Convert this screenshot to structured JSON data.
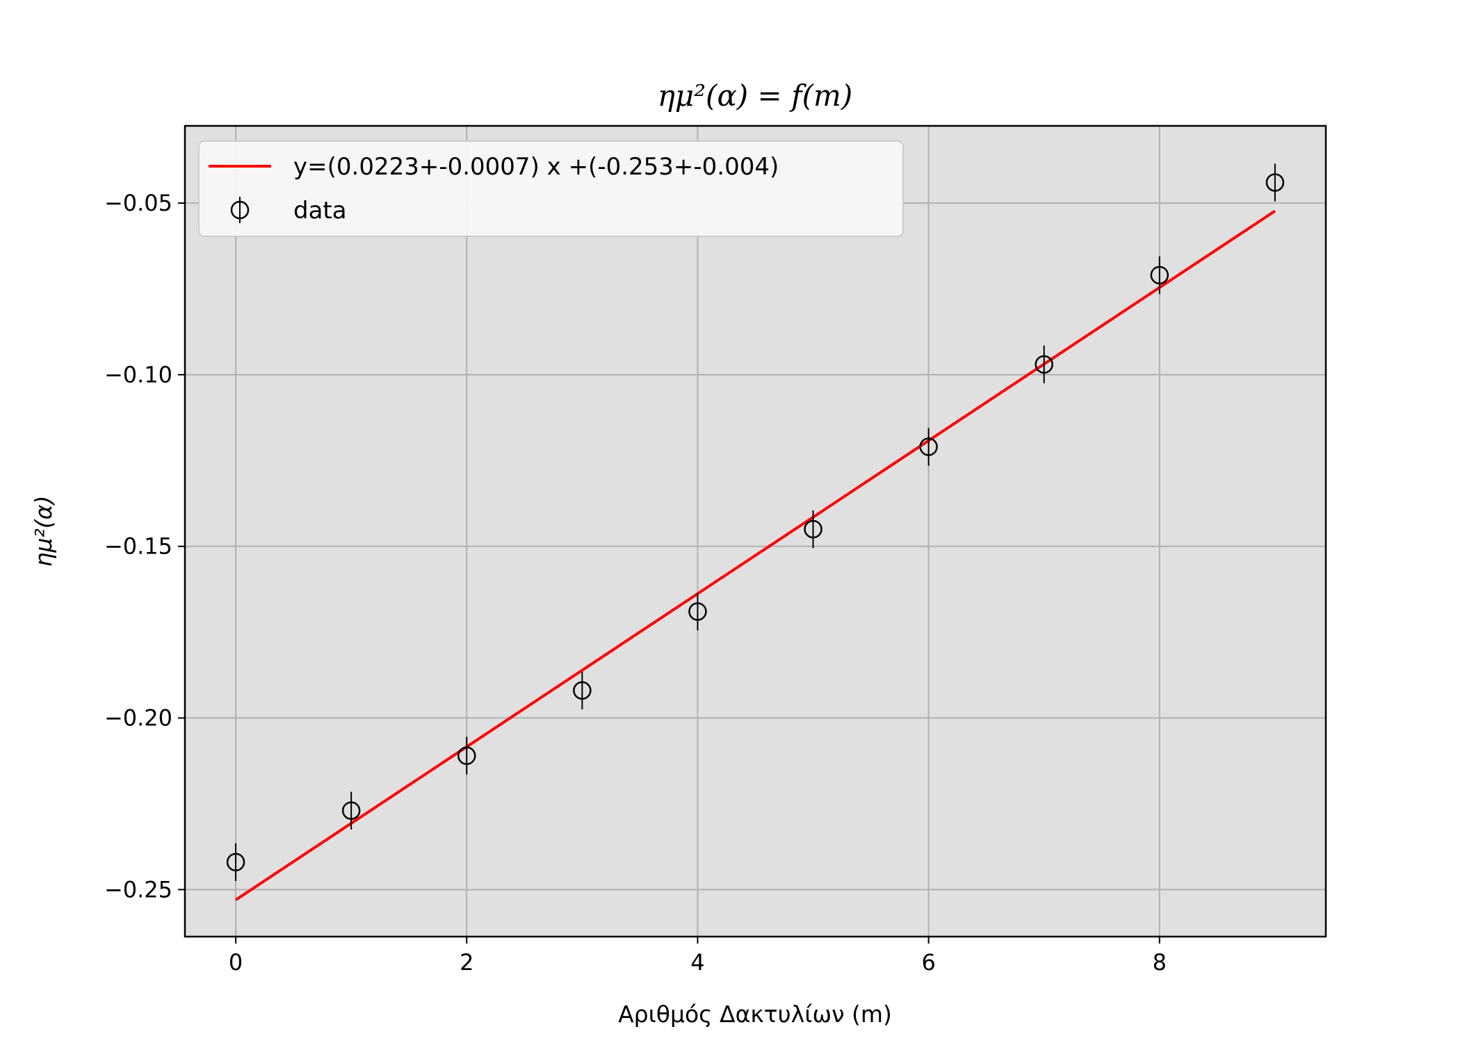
{
  "chart_data": {
    "type": "scatter",
    "title": "ημ²(α) = f(m)",
    "xlabel": "Αριθμός Δακτυλίων (m)",
    "ylabel": "ημ²(α)",
    "xlim": [
      -0.44,
      9.44
    ],
    "ylim": [
      -0.2637,
      -0.0275
    ],
    "xticks": [
      0,
      2,
      4,
      6,
      8
    ],
    "xtick_labels": [
      "0",
      "2",
      "4",
      "6",
      "8"
    ],
    "yticks": [
      -0.25,
      -0.2,
      -0.15,
      -0.1,
      -0.05
    ],
    "ytick_labels": [
      "−0.25",
      "−0.20",
      "−0.15",
      "−0.10",
      "−0.05"
    ],
    "grid": true,
    "legend_position": "upper-left",
    "series": [
      {
        "name": "data",
        "kind": "errorbar",
        "marker": "open-circle",
        "color": "#000000",
        "x": [
          0,
          1,
          2,
          3,
          4,
          5,
          6,
          7,
          8,
          9
        ],
        "y": [
          -0.242,
          -0.227,
          -0.211,
          -0.192,
          -0.169,
          -0.145,
          -0.121,
          -0.097,
          -0.071,
          -0.044
        ],
        "yerr": 0.0055
      },
      {
        "name": "y=(0.0223+-0.0007) x +(-0.253+-0.004)",
        "kind": "line",
        "color": "#ff0000",
        "slope": 0.0223,
        "intercept": -0.253,
        "x_range": [
          0,
          9
        ]
      }
    ]
  }
}
